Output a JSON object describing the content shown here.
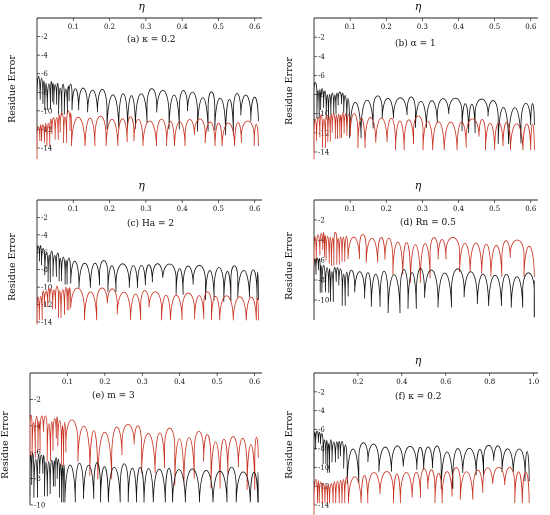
{
  "colors": {
    "black_series": "#111111",
    "red_series": "#c8301e"
  },
  "chart_data": [
    {
      "type": "line",
      "panel_label": "(a)",
      "param": "κ = 0.2",
      "xlabel": "η",
      "ylabel": "Residue Error",
      "xlim": [
        0,
        0.62
      ],
      "ylim": [
        -14,
        0
      ],
      "xticks": [
        "0.1",
        "0.2",
        "0.3",
        "0.4",
        "0.5",
        "0.6"
      ],
      "xtick_values": [
        0.1,
        0.2,
        0.3,
        0.4,
        0.5,
        0.6
      ],
      "yticks": [
        "-2",
        "-4",
        "-6",
        "-8",
        "-10",
        "-12",
        "-14"
      ],
      "ytick_values": [
        -2,
        -4,
        -6,
        -8,
        -10,
        -12,
        -14
      ],
      "series": [
        {
          "color": "black",
          "x": [
            0.0,
            0.02,
            0.04,
            0.06,
            0.09,
            0.12,
            0.15,
            0.18,
            0.22,
            0.26,
            0.3,
            0.34,
            0.38,
            0.42,
            0.46,
            0.5,
            0.54,
            0.58,
            0.61
          ],
          "y": [
            -5.5,
            -6.2,
            -6.5,
            -6.8,
            -7.0,
            -7.1,
            -7.2,
            -7.2,
            -7.3,
            -7.4,
            -7.3,
            -7.2,
            -7.3,
            -7.5,
            -7.6,
            -7.7,
            -7.7,
            -7.8,
            -7.9
          ]
        },
        {
          "color": "red",
          "x": [
            0.0,
            0.02,
            0.04,
            0.06,
            0.09,
            0.12,
            0.15,
            0.18,
            0.22,
            0.26,
            0.3,
            0.34,
            0.38,
            0.42,
            0.46,
            0.5,
            0.54,
            0.58,
            0.61
          ],
          "y": [
            -11.5,
            -11.0,
            -10.5,
            -10.0,
            -9.8,
            -9.9,
            -10.0,
            -10.1,
            -10.2,
            -10.3,
            -10.4,
            -10.4,
            -10.5,
            -10.6,
            -10.6,
            -10.7,
            -10.7,
            -10.8,
            -10.9
          ]
        }
      ]
    },
    {
      "type": "line",
      "panel_label": "(b)",
      "param": "α = 1",
      "xlabel": "η",
      "ylabel": "Residue Error",
      "xlim": [
        0,
        0.62
      ],
      "ylim": [
        -14,
        0
      ],
      "xticks": [
        "0.1",
        "0.2",
        "0.3",
        "0.4",
        "0.5",
        "0.6"
      ],
      "xtick_values": [
        0.1,
        0.2,
        0.3,
        0.4,
        0.5,
        0.6
      ],
      "yticks": [
        "-2",
        "-4",
        "-6",
        "-8",
        "-10",
        "-12",
        "-14"
      ],
      "ytick_values": [
        -2,
        -4,
        -6,
        -8,
        -10,
        -12,
        -14
      ],
      "series": [
        {
          "color": "black",
          "x": [
            0.0,
            0.02,
            0.04,
            0.06,
            0.09,
            0.12,
            0.15,
            0.18,
            0.22,
            0.26,
            0.3,
            0.34,
            0.38,
            0.42,
            0.46,
            0.5,
            0.54,
            0.58,
            0.61
          ],
          "y": [
            -6.5,
            -7.0,
            -7.4,
            -7.6,
            -7.7,
            -7.8,
            -7.8,
            -7.9,
            -7.9,
            -8.0,
            -8.0,
            -8.1,
            -8.1,
            -8.2,
            -8.2,
            -8.3,
            -8.3,
            -8.4,
            -8.4
          ]
        },
        {
          "color": "red",
          "x": [
            0.0,
            0.02,
            0.04,
            0.06,
            0.09,
            0.12,
            0.15,
            0.18,
            0.22,
            0.26,
            0.3,
            0.34,
            0.38,
            0.42,
            0.46,
            0.5,
            0.54,
            0.58,
            0.61
          ],
          "y": [
            -10.0,
            -9.8,
            -9.6,
            -9.5,
            -9.5,
            -9.6,
            -9.7,
            -9.8,
            -9.9,
            -10.0,
            -10.0,
            -10.1,
            -10.1,
            -10.2,
            -10.2,
            -10.3,
            -10.3,
            -10.4,
            -10.4
          ]
        }
      ]
    },
    {
      "type": "line",
      "panel_label": "(c)",
      "param": "Ha = 2",
      "xlabel": "η",
      "ylabel": "Residue Error",
      "xlim": [
        0,
        0.62
      ],
      "ylim": [
        -14,
        0
      ],
      "xticks": [
        "0.1",
        "0.2",
        "0.3",
        "0.4",
        "0.5",
        "0.6"
      ],
      "xtick_values": [
        0.1,
        0.2,
        0.3,
        0.4,
        0.5,
        0.6
      ],
      "yticks": [
        "-2",
        "-4",
        "-6",
        "-8",
        "-10",
        "-12",
        "-14"
      ],
      "ytick_values": [
        -2,
        -4,
        -6,
        -8,
        -10,
        -12,
        -14
      ],
      "series": [
        {
          "color": "black",
          "x": [
            0.0,
            0.02,
            0.04,
            0.06,
            0.09,
            0.12,
            0.15,
            0.18,
            0.22,
            0.26,
            0.3,
            0.34,
            0.38,
            0.42,
            0.46,
            0.5,
            0.54,
            0.58,
            0.61
          ],
          "y": [
            -4.8,
            -5.2,
            -5.6,
            -6.0,
            -6.3,
            -6.5,
            -6.6,
            -6.7,
            -6.8,
            -6.9,
            -7.0,
            -7.0,
            -7.1,
            -7.1,
            -7.2,
            -7.2,
            -7.3,
            -7.3,
            -7.4
          ]
        },
        {
          "color": "red",
          "x": [
            0.0,
            0.02,
            0.04,
            0.06,
            0.09,
            0.12,
            0.15,
            0.18,
            0.22,
            0.26,
            0.3,
            0.34,
            0.38,
            0.42,
            0.46,
            0.5,
            0.54,
            0.58,
            0.61
          ],
          "y": [
            -10.5,
            -10.2,
            -9.9,
            -9.6,
            -9.5,
            -9.6,
            -9.7,
            -9.8,
            -9.9,
            -10.0,
            -10.1,
            -10.2,
            -10.2,
            -10.3,
            -10.3,
            -10.4,
            -10.4,
            -10.5,
            -10.5
          ]
        }
      ]
    },
    {
      "type": "line",
      "panel_label": "(d)",
      "param": "Rn = 0.5",
      "xlabel": "η",
      "ylabel": "Residue Error",
      "xlim": [
        0,
        0.62
      ],
      "ylim": [
        -12,
        0
      ],
      "xticks": [
        "0.1",
        "0.2",
        "0.3",
        "0.4",
        "0.5",
        "0.6"
      ],
      "xtick_values": [
        0.1,
        0.2,
        0.3,
        0.4,
        0.5,
        0.6
      ],
      "yticks": [
        "-2",
        "-4",
        "-6",
        "-8",
        "-10"
      ],
      "ytick_values": [
        -2,
        -4,
        -6,
        -8,
        -10
      ],
      "series": [
        {
          "color": "red",
          "x": [
            0.0,
            0.02,
            0.04,
            0.06,
            0.09,
            0.12,
            0.15,
            0.18,
            0.22,
            0.26,
            0.3,
            0.34,
            0.38,
            0.42,
            0.46,
            0.5,
            0.54,
            0.58,
            0.61
          ],
          "y": [
            -3.0,
            -3.0,
            -3.0,
            -3.1,
            -3.1,
            -3.2,
            -3.2,
            -3.3,
            -3.3,
            -3.4,
            -3.4,
            -3.5,
            -3.5,
            -3.6,
            -3.6,
            -3.7,
            -3.7,
            -3.8,
            -3.8
          ]
        },
        {
          "color": "black",
          "x": [
            0.0,
            0.02,
            0.04,
            0.06,
            0.09,
            0.12,
            0.15,
            0.18,
            0.22,
            0.26,
            0.3,
            0.34,
            0.38,
            0.42,
            0.46,
            0.5,
            0.54,
            0.58,
            0.61
          ],
          "y": [
            -5.5,
            -5.8,
            -6.2,
            -6.5,
            -6.6,
            -6.7,
            -6.6,
            -6.5,
            -6.4,
            -6.3,
            -6.2,
            -6.3,
            -6.4,
            -6.5,
            -6.6,
            -6.7,
            -6.8,
            -6.9,
            -7.0
          ]
        }
      ]
    },
    {
      "type": "line",
      "panel_label": "(e)",
      "param": "m = 3",
      "xlabel": "",
      "ylabel": "Residue Error",
      "xlim": [
        0,
        0.62
      ],
      "ylim": [
        -10,
        0
      ],
      "xticks": [
        "0.1",
        "0.2",
        "0.3",
        "0.4",
        "0.5",
        "0.6"
      ],
      "xtick_values": [
        0.1,
        0.2,
        0.3,
        0.4,
        0.5,
        0.6
      ],
      "yticks": [
        "-2",
        "-4",
        "-6",
        "-8",
        "-10"
      ],
      "ytick_values": [
        -2,
        -4,
        -6,
        -8,
        -10
      ],
      "series": [
        {
          "color": "red",
          "x": [
            0.0,
            0.02,
            0.04,
            0.06,
            0.09,
            0.12,
            0.15,
            0.18,
            0.22,
            0.26,
            0.3,
            0.34,
            0.38,
            0.42,
            0.46,
            0.5,
            0.54,
            0.58,
            0.61
          ],
          "y": [
            -3.0,
            -3.0,
            -3.0,
            -3.1,
            -3.1,
            -3.2,
            -3.3,
            -3.4,
            -3.5,
            -3.6,
            -3.7,
            -3.8,
            -3.9,
            -4.0,
            -4.1,
            -4.2,
            -4.3,
            -4.4,
            -4.5
          ]
        },
        {
          "color": "black",
          "x": [
            0.0,
            0.02,
            0.04,
            0.06,
            0.09,
            0.12,
            0.15,
            0.18,
            0.22,
            0.26,
            0.3,
            0.34,
            0.38,
            0.42,
            0.46,
            0.5,
            0.54,
            0.58,
            0.61
          ],
          "y": [
            -5.5,
            -5.8,
            -6.0,
            -6.1,
            -6.2,
            -6.2,
            -6.3,
            -6.3,
            -6.4,
            -6.5,
            -6.5,
            -6.6,
            -6.6,
            -6.7,
            -6.7,
            -6.8,
            -6.8,
            -6.9,
            -6.9
          ]
        }
      ]
    },
    {
      "type": "line",
      "panel_label": "(f)",
      "param": "κ = 0.2",
      "xlabel": "η",
      "ylabel": "Residue Error",
      "xlim": [
        0,
        1.02
      ],
      "ylim": [
        -14,
        0
      ],
      "xticks": [
        "0.2",
        "0.4",
        "0.6",
        "0.8",
        "1.0"
      ],
      "xtick_values": [
        0.2,
        0.4,
        0.6,
        0.8,
        1.0
      ],
      "yticks": [
        "-2",
        "-4",
        "-6",
        "-8",
        "-10",
        "-12",
        "-14"
      ],
      "ytick_values": [
        -2,
        -4,
        -6,
        -8,
        -10,
        -12,
        -14
      ],
      "series": [
        {
          "color": "black",
          "x": [
            0.0,
            0.03,
            0.06,
            0.1,
            0.15,
            0.2,
            0.26,
            0.32,
            0.38,
            0.44,
            0.5,
            0.56,
            0.62,
            0.68,
            0.74,
            0.8,
            0.86,
            0.92,
            0.98
          ],
          "y": [
            -5.8,
            -6.2,
            -6.6,
            -6.9,
            -7.0,
            -7.1,
            -7.1,
            -7.2,
            -7.2,
            -7.3,
            -7.3,
            -7.3,
            -7.3,
            -7.4,
            -7.4,
            -7.4,
            -7.4,
            -7.5,
            -7.5
          ]
        },
        {
          "color": "red",
          "x": [
            0.0,
            0.03,
            0.06,
            0.1,
            0.15,
            0.2,
            0.26,
            0.32,
            0.38,
            0.44,
            0.5,
            0.56,
            0.62,
            0.68,
            0.74,
            0.8,
            0.86,
            0.92,
            0.98
          ],
          "y": [
            -10.5,
            -11.0,
            -11.5,
            -11.0,
            -10.5,
            -10.2,
            -10.0,
            -10.0,
            -9.9,
            -9.9,
            -9.8,
            -9.8,
            -9.8,
            -9.7,
            -9.7,
            -9.7,
            -9.6,
            -9.6,
            -9.6
          ]
        }
      ]
    }
  ]
}
